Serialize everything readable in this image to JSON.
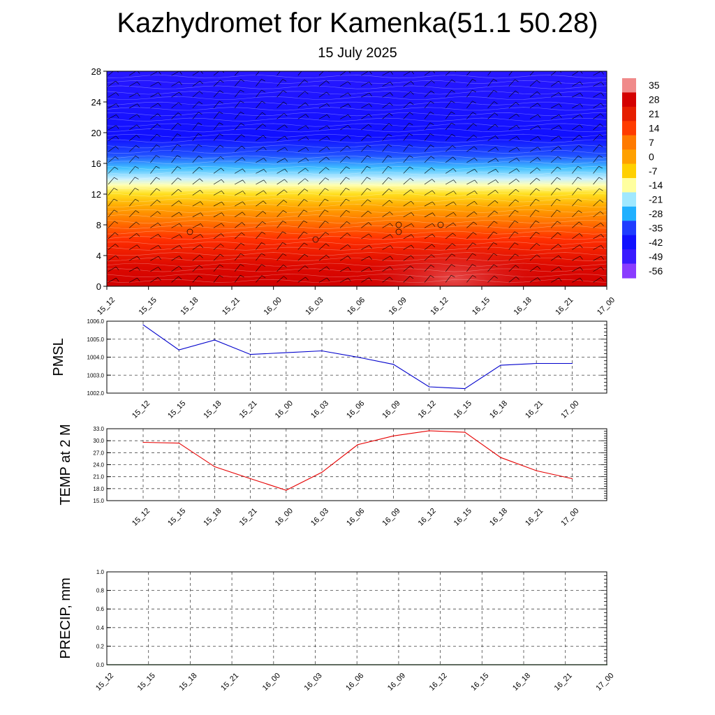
{
  "header": {
    "title": "Kazhydromet for Kamenka(51.1 50.28)",
    "subtitle": "15 July 2025"
  },
  "chart_data": [
    {
      "type": "heatmap",
      "name": "temperature-cross-section",
      "x_ticks": [
        "15_12",
        "15_15",
        "15_18",
        "15_21",
        "16_00",
        "16_03",
        "16_06",
        "16_09",
        "16_12",
        "16_15",
        "16_18",
        "16_21",
        "17_00"
      ],
      "y_ticks": [
        0,
        4,
        8,
        12,
        16,
        20,
        24,
        28
      ],
      "ylim": [
        0,
        28
      ],
      "colorbar": {
        "labels": [
          "35",
          "28",
          "21",
          "14",
          "7",
          "0",
          "-7",
          "-14",
          "-21",
          "-28",
          "-35",
          "-42",
          "-49",
          "-56"
        ],
        "colors": [
          "#f08a8a",
          "#d40000",
          "#e61e00",
          "#ff3c00",
          "#ff7a00",
          "#ffa000",
          "#ffd000",
          "#ffff9f",
          "#a0e8ff",
          "#20b0ff",
          "#1f3cff",
          "#1010ff",
          "#3a1aff",
          "#8a3cff"
        ]
      }
    },
    {
      "type": "line",
      "name": "pmsl",
      "ylabel": "PMSL",
      "categories": [
        "15_12",
        "15_15",
        "15_18",
        "15_21",
        "16_00",
        "16_03",
        "16_06",
        "16_09",
        "16_12",
        "16_15",
        "16_18",
        "16_21",
        "17_00"
      ],
      "values": [
        1005.8,
        1004.4,
        1004.95,
        1004.15,
        1004.25,
        1004.35,
        1004.0,
        1003.6,
        1002.35,
        1002.25,
        1003.55,
        1003.65,
        1003.65
      ],
      "ylim": [
        1002.0,
        1006.0
      ],
      "y_ticks": [
        "1006.0",
        "1005.0",
        "1004.0",
        "1003.0",
        "1002.0"
      ],
      "color": "#0000cc"
    },
    {
      "type": "line",
      "name": "temp2m",
      "ylabel": "TEMP at 2 M",
      "categories": [
        "15_12",
        "15_15",
        "15_18",
        "15_21",
        "16_00",
        "16_03",
        "16_06",
        "16_09",
        "16_12",
        "16_15",
        "16_18",
        "16_21",
        "17_00"
      ],
      "values": [
        29.6,
        29.4,
        23.5,
        20.5,
        17.6,
        22.1,
        29.0,
        31.2,
        32.5,
        32.1,
        25.8,
        22.5,
        20.5
      ],
      "ylim": [
        15.0,
        33.0
      ],
      "y_ticks": [
        "33.0",
        "30.0",
        "27.0",
        "24.0",
        "21.0",
        "18.0",
        "15.0"
      ],
      "color": "#e60000"
    },
    {
      "type": "line",
      "name": "precip",
      "ylabel": "PRECIP, mm",
      "categories": [
        "15_12",
        "15_15",
        "15_18",
        "15_21",
        "16_00",
        "16_03",
        "16_06",
        "16_09",
        "16_12",
        "16_15",
        "16_18",
        "16_21",
        "17_00"
      ],
      "values": [
        0,
        0,
        0,
        0,
        0,
        0,
        0,
        0,
        0,
        0,
        0,
        0,
        0
      ],
      "ylim": [
        0.0,
        1.0
      ],
      "y_ticks": [
        "1.0",
        "0.8",
        "0.6",
        "0.4",
        "0.2",
        "0.0"
      ],
      "color": "#006400"
    }
  ]
}
